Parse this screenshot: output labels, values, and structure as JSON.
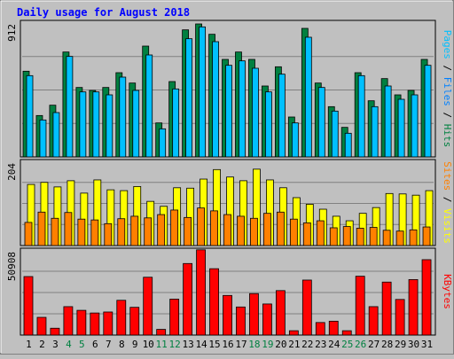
{
  "chart_data": [
    {
      "type": "bar",
      "title": "Daily usage for August 2018",
      "categories": [
        "1",
        "2",
        "3",
        "4",
        "5",
        "6",
        "7",
        "8",
        "9",
        "10",
        "11",
        "12",
        "13",
        "14",
        "15",
        "16",
        "17",
        "18",
        "19",
        "20",
        "21",
        "22",
        "23",
        "24",
        "25",
        "26",
        "27",
        "28",
        "29",
        "30",
        "31"
      ],
      "weekend_days": [
        "4",
        "5",
        "11",
        "12",
        "18",
        "19",
        "25",
        "26"
      ],
      "ytick": "912",
      "ylim": [
        0,
        912
      ],
      "series": [
        {
          "name": "Hits",
          "color": "#008040",
          "values": [
            580,
            280,
            350,
            710,
            470,
            450,
            470,
            570,
            500,
            750,
            230,
            510,
            860,
            900,
            830,
            660,
            710,
            660,
            480,
            610,
            270,
            870,
            500,
            340,
            200,
            570,
            380,
            530,
            420,
            450,
            660
          ]
        },
        {
          "name": "Files",
          "color": "#0080ff",
          "values": [
            0,
            0,
            0,
            0,
            0,
            0,
            0,
            0,
            0,
            0,
            0,
            0,
            0,
            0,
            0,
            0,
            0,
            0,
            0,
            0,
            0,
            0,
            0,
            0,
            0,
            0,
            0,
            0,
            0,
            0,
            0
          ]
        },
        {
          "name": "Pages",
          "color": "#00c0ff",
          "values": [
            550,
            250,
            300,
            680,
            440,
            440,
            420,
            540,
            450,
            690,
            190,
            460,
            800,
            880,
            780,
            620,
            650,
            600,
            440,
            560,
            230,
            810,
            470,
            310,
            160,
            550,
            340,
            480,
            390,
            420,
            620
          ]
        }
      ],
      "ylabel_parts": [
        {
          "text": "Pages",
          "color": "#00c0ff"
        },
        {
          "text": " / ",
          "color": "#000000"
        },
        {
          "text": "Files",
          "color": "#0080ff"
        },
        {
          "text": " / ",
          "color": "#000000"
        },
        {
          "text": "Hits",
          "color": "#008040"
        }
      ]
    },
    {
      "type": "bar",
      "categories": [
        "1",
        "2",
        "3",
        "4",
        "5",
        "6",
        "7",
        "8",
        "9",
        "10",
        "11",
        "12",
        "13",
        "14",
        "15",
        "16",
        "17",
        "18",
        "19",
        "20",
        "21",
        "22",
        "23",
        "24",
        "25",
        "26",
        "27",
        "28",
        "29",
        "30",
        "31"
      ],
      "ytick": "204",
      "ylim": [
        0,
        204
      ],
      "series": [
        {
          "name": "Visits",
          "color": "#ffff00",
          "values": [
            148,
            153,
            142,
            157,
            127,
            159,
            135,
            133,
            143,
            107,
            95,
            140,
            139,
            161,
            184,
            166,
            157,
            185,
            159,
            140,
            116,
            100,
            88,
            71,
            60,
            78,
            92,
            126,
            125,
            122,
            133
          ]
        },
        {
          "name": "Sites",
          "color": "#ff8000",
          "values": [
            56,
            81,
            66,
            80,
            64,
            62,
            53,
            65,
            71,
            67,
            75,
            86,
            68,
            91,
            84,
            75,
            71,
            66,
            78,
            81,
            64,
            55,
            60,
            43,
            46,
            42,
            44,
            37,
            35,
            38,
            45
          ]
        }
      ],
      "ylabel_parts": [
        {
          "text": "Sites",
          "color": "#ff8000"
        },
        {
          "text": " / ",
          "color": "#000000"
        },
        {
          "text": "Visits",
          "color": "#ffff00"
        }
      ]
    },
    {
      "type": "bar",
      "categories": [
        "1",
        "2",
        "3",
        "4",
        "5",
        "6",
        "7",
        "8",
        "9",
        "10",
        "11",
        "12",
        "13",
        "14",
        "15",
        "16",
        "17",
        "18",
        "19",
        "20",
        "21",
        "22",
        "23",
        "24",
        "25",
        "26",
        "27",
        "28",
        "29",
        "30",
        "31"
      ],
      "ytick": "50908",
      "ylim": [
        0,
        50908
      ],
      "series": [
        {
          "name": "KBytes",
          "color": "#ff0000",
          "values": [
            35000,
            10600,
            4100,
            17000,
            14800,
            13200,
            13800,
            20800,
            16600,
            34600,
            3400,
            21500,
            42800,
            51000,
            39700,
            23700,
            16800,
            24800,
            18600,
            26600,
            2600,
            32900,
            7500,
            8300,
            2600,
            35200,
            17000,
            31700,
            21300,
            33200,
            45100
          ]
        }
      ],
      "ylabel_parts": [
        {
          "text": "KBytes",
          "color": "#ff0000"
        }
      ]
    }
  ]
}
